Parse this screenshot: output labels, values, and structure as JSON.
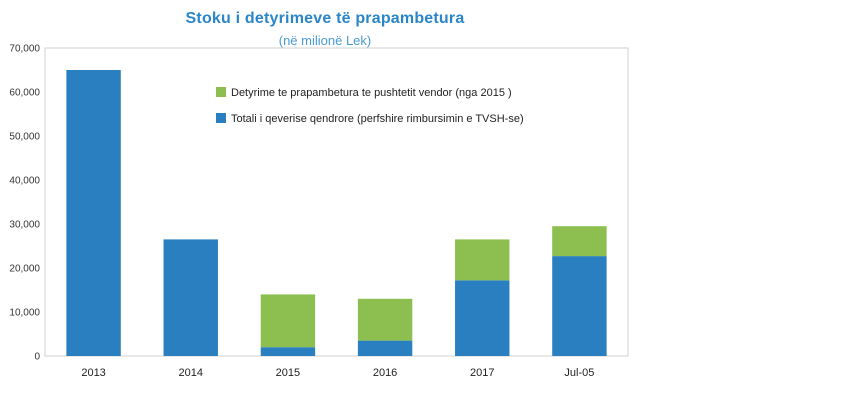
{
  "chart_data": {
    "type": "bar",
    "stacked": true,
    "title": "Stoku i detyrimeve të prapambetura",
    "subtitle": "(në  milionë Lek)",
    "categories": [
      "2013",
      "2014",
      "2015",
      "2016",
      "2017",
      "Jul-05"
    ],
    "series": [
      {
        "name": "Totali i qeverise qendrore (perfshire rimbursimin e TVSH-se)",
        "color": "#2a7fc1",
        "values": [
          65000,
          26500,
          2000,
          3500,
          17200,
          22700
        ]
      },
      {
        "name": "Detyrime te prapambetura te pushtetit vendor (nga 2015 )",
        "color": "#8cbf4f",
        "values": [
          0,
          0,
          12000,
          9500,
          9300,
          6800
        ]
      }
    ],
    "ylim": [
      0,
      70000
    ],
    "yticks": [
      "0",
      "10,000",
      "20,000",
      "30,000",
      "40,000",
      "50,000",
      "60,000",
      "70,000"
    ],
    "ytick_values": [
      0,
      10000,
      20000,
      30000,
      40000,
      50000,
      60000,
      70000
    ],
    "legend_position": "top-right",
    "legend_order": [
      1,
      0
    ],
    "grid": false
  }
}
